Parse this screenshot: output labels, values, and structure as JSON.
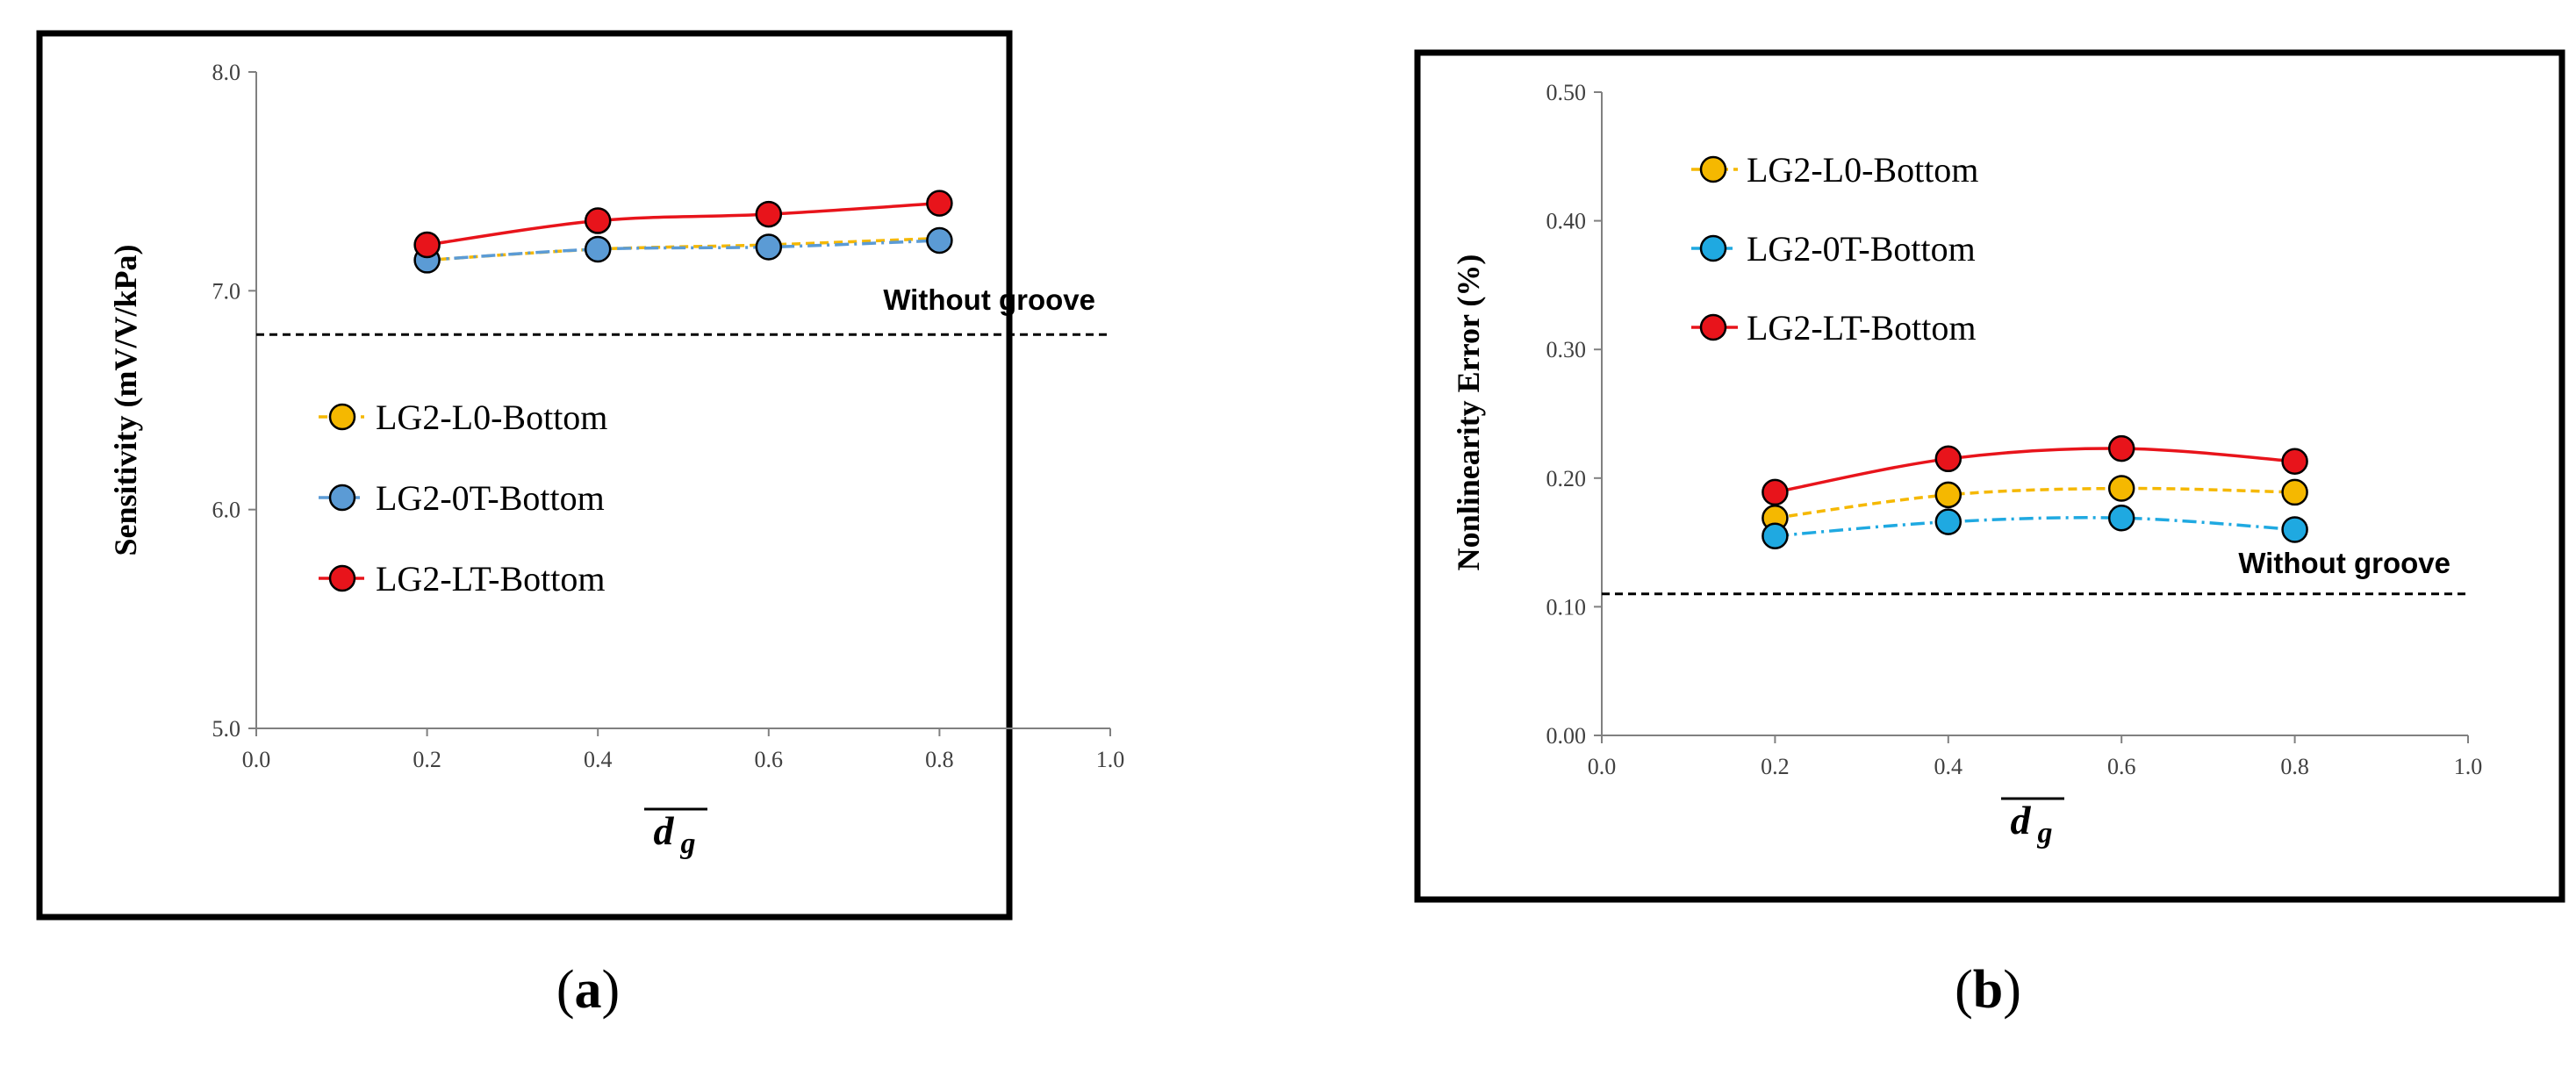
{
  "chart_data": [
    {
      "type": "line",
      "panel_label": "(a)",
      "panel_letter": "a",
      "title": "",
      "xlabel": "d",
      "xlabel_sub": "g",
      "ylabel": "Sensitivity (mV/V/kPa)",
      "xlim": [
        0.0,
        1.0
      ],
      "ylim": [
        5.0,
        8.0
      ],
      "xticks": [
        "0.0",
        "0.2",
        "0.4",
        "0.6",
        "0.8",
        "1.0"
      ],
      "yticks": [
        "5.0",
        "6.0",
        "7.0",
        "8.0"
      ],
      "grid": false,
      "legend_position": "center-left",
      "reference_line": {
        "label": "Without groove",
        "value": 6.8
      },
      "x": [
        0.2,
        0.4,
        0.6,
        0.8
      ],
      "series": [
        {
          "name": "LG2-L0-Bottom",
          "values": [
            7.14,
            7.19,
            7.21,
            7.24
          ],
          "color": "#F5B800",
          "line_style": "dashed",
          "show_markers": false
        },
        {
          "name": "LG2-0T-Bottom",
          "values": [
            7.14,
            7.19,
            7.2,
            7.23
          ],
          "color": "#5B9BD5",
          "line_style": "dashdot",
          "show_markers": true
        },
        {
          "name": "LG2-LT-Bottom",
          "values": [
            7.21,
            7.32,
            7.35,
            7.4
          ],
          "color": "#E8141B",
          "line_style": "solid",
          "show_markers": true
        }
      ]
    },
    {
      "type": "line",
      "panel_label": "(b)",
      "panel_letter": "b",
      "title": "",
      "xlabel": "d",
      "xlabel_sub": "g",
      "ylabel": "Nonlinearity Error (%)",
      "xlim": [
        0.0,
        1.0
      ],
      "ylim": [
        0.0,
        0.5
      ],
      "xticks": [
        "0.0",
        "0.2",
        "0.4",
        "0.6",
        "0.8",
        "1.0"
      ],
      "yticks": [
        "0.00",
        "0.10",
        "0.20",
        "0.30",
        "0.40",
        "0.50"
      ],
      "grid": false,
      "legend_position": "top-left",
      "reference_line": {
        "label": "Without groove",
        "value": 0.11
      },
      "x": [
        0.2,
        0.4,
        0.6,
        0.8
      ],
      "series": [
        {
          "name": "LG2-L0-Bottom",
          "values": [
            0.169,
            0.187,
            0.192,
            0.189
          ],
          "color": "#F5B800",
          "line_style": "dashed",
          "show_markers": true
        },
        {
          "name": "LG2-0T-Bottom",
          "values": [
            0.155,
            0.166,
            0.169,
            0.16
          ],
          "color": "#1FA9E1",
          "line_style": "dashdot",
          "show_markers": true
        },
        {
          "name": "LG2-LT-Bottom",
          "values": [
            0.189,
            0.215,
            0.223,
            0.213
          ],
          "color": "#E8141B",
          "line_style": "solid",
          "show_markers": true
        }
      ]
    }
  ]
}
